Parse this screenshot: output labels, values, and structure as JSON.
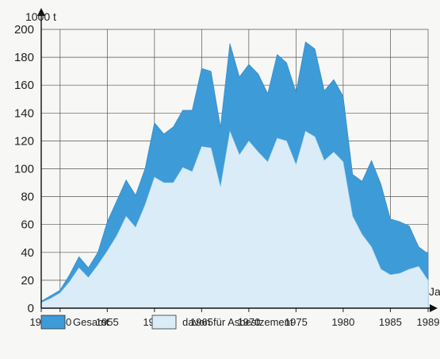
{
  "chart_data": {
    "type": "area",
    "ylabel": "1000 t",
    "xlabel": "Jahr",
    "xlim": [
      1948,
      1989
    ],
    "ylim": [
      0,
      200
    ],
    "yticks": [
      0,
      20,
      40,
      60,
      80,
      100,
      120,
      140,
      160,
      180,
      200
    ],
    "xtick_labels": [
      "1948",
      "1950",
      "1955",
      "1960",
      "1965",
      "1970",
      "1975",
      "1980",
      "1985",
      "1989"
    ],
    "xtick_values": [
      1948,
      1950,
      1955,
      1960,
      1965,
      1970,
      1975,
      1980,
      1985,
      1989
    ],
    "grid": true,
    "legend_position": "bottom",
    "colors": {
      "gesamt": "#3d9bd8",
      "asbest": "#d9ecf8",
      "grid": "#555555"
    },
    "x": [
      1948,
      1949,
      1950,
      1951,
      1952,
      1953,
      1954,
      1955,
      1956,
      1957,
      1958,
      1959,
      1960,
      1961,
      1962,
      1963,
      1964,
      1965,
      1966,
      1967,
      1968,
      1969,
      1970,
      1971,
      1972,
      1973,
      1974,
      1975,
      1976,
      1977,
      1978,
      1979,
      1980,
      1981,
      1982,
      1983,
      1984,
      1985,
      1986,
      1987,
      1988,
      1989
    ],
    "series": [
      {
        "name": "Gesamt",
        "values": [
          5,
          9,
          13,
          24,
          37,
          29,
          40,
          62,
          77,
          92,
          81,
          100,
          133,
          125,
          130,
          142,
          142,
          172,
          170,
          130,
          190,
          166,
          175,
          168,
          154,
          182,
          176,
          155,
          191,
          186,
          156,
          164,
          152,
          96,
          91,
          106,
          89,
          64,
          62,
          59,
          44,
          39
        ]
      },
      {
        "name": "davon für Asbestzement",
        "values": [
          4,
          7,
          11,
          19,
          29,
          22,
          31,
          41,
          52,
          66,
          58,
          74,
          94,
          90,
          90,
          101,
          98,
          116,
          115,
          87,
          127,
          110,
          120,
          112,
          105,
          122,
          120,
          103,
          127,
          123,
          106,
          112,
          105,
          66,
          53,
          44,
          28,
          24,
          25,
          28,
          30,
          20
        ]
      }
    ]
  }
}
